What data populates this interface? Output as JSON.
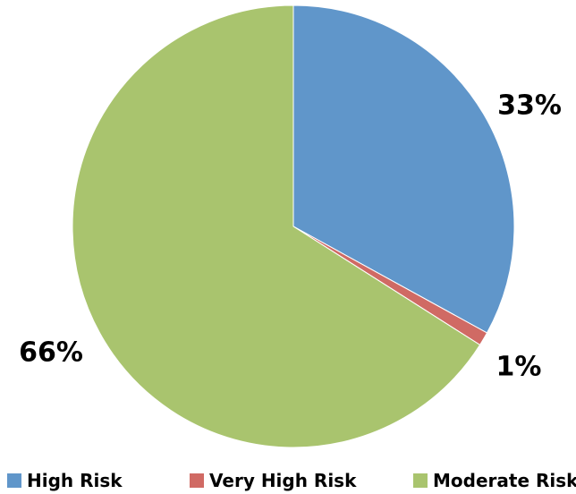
{
  "chart_data": {
    "type": "pie",
    "categories": [
      "High Risk",
      "Very High Risk",
      "Moderate Risk"
    ],
    "values": [
      33,
      1,
      66
    ],
    "data_labels": [
      "33%",
      "1%",
      "66%"
    ],
    "colors": [
      "#6096CA",
      "#D06A64",
      "#A9C46E"
    ],
    "legend_position": "bottom",
    "start_angle_deg": 0,
    "direction": "clockwise"
  },
  "legend": {
    "items": [
      {
        "label": "High Risk",
        "color": "#6096CA"
      },
      {
        "label": "Very High Risk",
        "color": "#D06A64"
      },
      {
        "label": "Moderate Risk",
        "color": "#A9C46E"
      }
    ]
  }
}
